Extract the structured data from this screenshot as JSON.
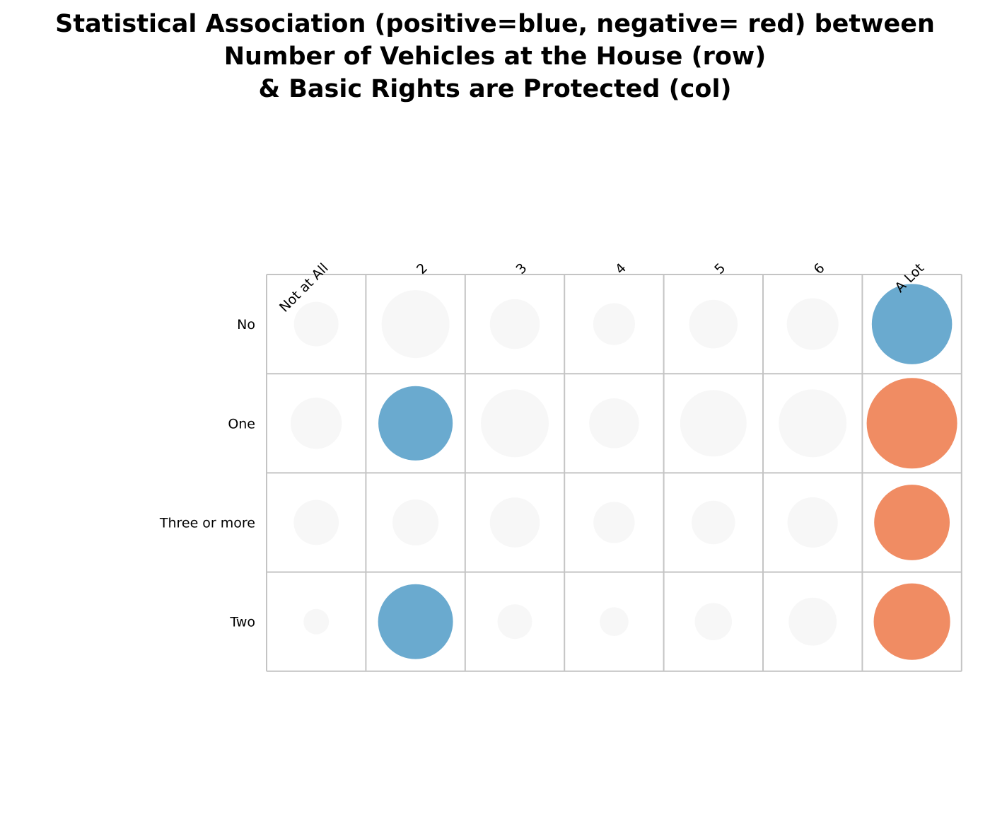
{
  "chart_data": {
    "type": "heatmap",
    "title_lines": [
      "Statistical Association (positive=blue, negative= red) between",
      "Number of Vehicles at the House (row)",
      "& Basic Rights are Protected (col)"
    ],
    "rows": [
      "No",
      "One",
      "Three or more",
      "Two"
    ],
    "columns": [
      "Not at All",
      "2",
      "3",
      "4",
      "5",
      "6",
      "A Lot"
    ],
    "cells": [
      [
        {
          "value": 0.43,
          "sign": "neutral"
        },
        {
          "value": 1.0,
          "sign": "neutral"
        },
        {
          "value": 0.54,
          "sign": "neutral"
        },
        {
          "value": 0.38,
          "sign": "neutral"
        },
        {
          "value": 0.51,
          "sign": "neutral"
        },
        {
          "value": 0.58,
          "sign": "neutral"
        },
        {
          "value": 1.4,
          "sign": "positive"
        }
      ],
      [
        {
          "value": 0.57,
          "sign": "neutral"
        },
        {
          "value": 1.2,
          "sign": "positive"
        },
        {
          "value": 1.0,
          "sign": "neutral"
        },
        {
          "value": 0.54,
          "sign": "neutral"
        },
        {
          "value": 0.96,
          "sign": "neutral"
        },
        {
          "value": 1.0,
          "sign": "neutral"
        },
        {
          "value": 1.78,
          "sign": "negative"
        }
      ],
      [
        {
          "value": 0.44,
          "sign": "neutral"
        },
        {
          "value": 0.46,
          "sign": "neutral"
        },
        {
          "value": 0.54,
          "sign": "neutral"
        },
        {
          "value": 0.37,
          "sign": "neutral"
        },
        {
          "value": 0.41,
          "sign": "neutral"
        },
        {
          "value": 0.55,
          "sign": "neutral"
        },
        {
          "value": 1.24,
          "sign": "negative"
        }
      ],
      [
        {
          "value": 0.14,
          "sign": "neutral"
        },
        {
          "value": 1.22,
          "sign": "positive"
        },
        {
          "value": 0.26,
          "sign": "neutral"
        },
        {
          "value": 0.18,
          "sign": "neutral"
        },
        {
          "value": 0.3,
          "sign": "neutral"
        },
        {
          "value": 0.5,
          "sign": "neutral"
        },
        {
          "value": 1.27,
          "sign": "negative"
        }
      ]
    ],
    "colors": {
      "positive": "#6aaacf",
      "negative": "#f08c63",
      "neutral": "#f7f7f7",
      "grid": "#c4c4c4"
    }
  }
}
